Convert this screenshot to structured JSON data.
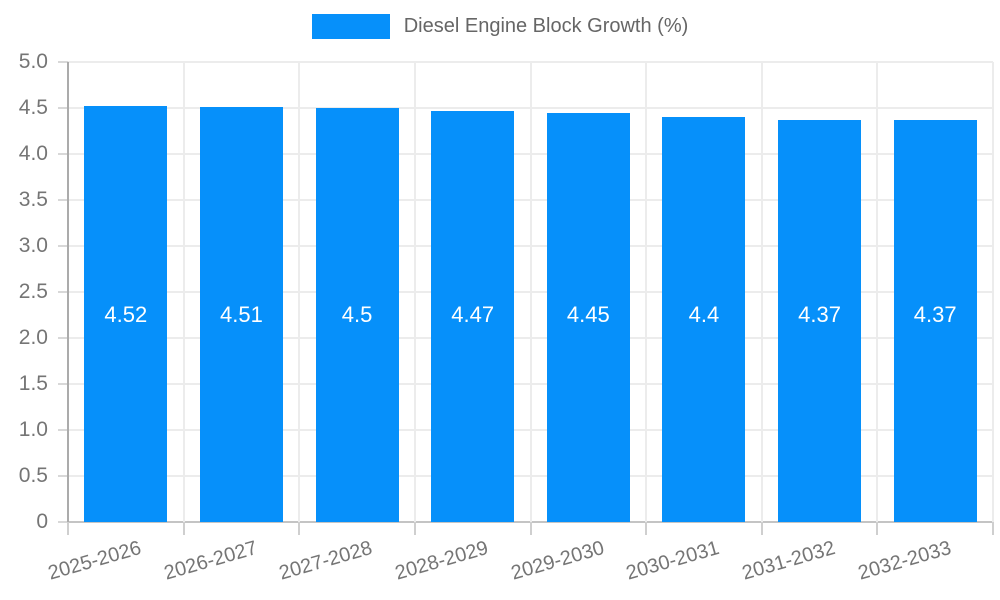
{
  "legend": {
    "label": "Diesel Engine Block Growth (%)"
  },
  "chart_data": {
    "type": "bar",
    "title": "Diesel Engine Block Growth (%)",
    "categories": [
      "2025-2026",
      "2026-2027",
      "2027-2028",
      "2028-2029",
      "2029-2030",
      "2030-2031",
      "2031-2032",
      "2032-2033"
    ],
    "values": [
      4.52,
      4.51,
      4.5,
      4.47,
      4.45,
      4.4,
      4.37,
      4.37
    ],
    "value_labels": [
      "4.52",
      "4.51",
      "4.5",
      "4.47",
      "4.45",
      "4.4",
      "4.37",
      "4.37"
    ],
    "xlabel": "",
    "ylabel": "",
    "ylim": [
      0,
      5
    ],
    "yticks": [
      0,
      0.5,
      1,
      1.5,
      2,
      2.5,
      3,
      3.5,
      4,
      4.5,
      5
    ],
    "ytick_labels": [
      "0",
      "0.5",
      "1.0",
      "1.5",
      "2.0",
      "2.5",
      "3.0",
      "3.5",
      "4.0",
      "4.5",
      "5.0"
    ],
    "grid": true,
    "legend_position": "top",
    "x_label_rotation_deg": -16,
    "colors": {
      "bar": "#0690fa",
      "value_label": "#ffffff",
      "tick_label": "#757575",
      "legend_text": "#666666",
      "gridline": "#ececec",
      "axis_line": "#ababab",
      "baseline": "#c4c4c4",
      "background": "#ffffff"
    }
  }
}
